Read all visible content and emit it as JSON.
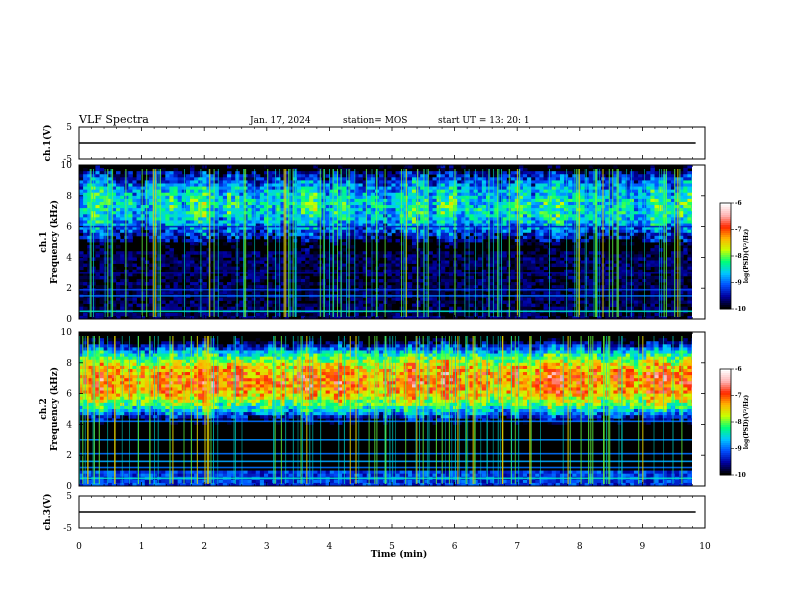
{
  "header": {
    "title": "VLF Spectra",
    "date": "Jan. 17, 2024",
    "station": "station= MOS",
    "start": "start  UT  =   13: 20: 1"
  },
  "colors": {
    "scale": [
      "#000000",
      "#0000a0",
      "#0050ff",
      "#00c8ff",
      "#00ff78",
      "#c8ff00",
      "#ffb400",
      "#ff2800",
      "#ffb4b4",
      "#ffffff"
    ]
  },
  "chart_data": [
    {
      "type": "line",
      "panel": "ch1-waveform",
      "ylabel": "ch.1(V)",
      "ylim": [
        -5,
        5
      ],
      "yticks": [
        "5",
        "-5"
      ],
      "xlim": [
        0,
        10
      ],
      "trace_level": 0
    },
    {
      "type": "heatmap",
      "panel": "ch1-spectrogram",
      "ylabel": "ch.1\nFrequency (kHz)",
      "ylabel_lines": [
        "ch.1",
        "Frequency (kHz)"
      ],
      "ylim": [
        0,
        10
      ],
      "yticks": [
        "0",
        "2",
        "4",
        "6",
        "8",
        "10"
      ],
      "xlim": [
        0,
        10
      ],
      "data_xmax": 9.85,
      "colorbar": {
        "label": "log(PSD)(V²/Hz)",
        "ticks": [
          "-6",
          "-7",
          "-8",
          "-9",
          "-10"
        ],
        "range": [
          -10,
          -6
        ]
      },
      "bands_khz": [
        {
          "f": 0.5,
          "level": -8.5
        },
        {
          "f": 1.5,
          "level": -9.0
        },
        {
          "f": 1.9,
          "level": -9.2
        },
        {
          "f": 3.0,
          "level": -9.6
        },
        {
          "f": 6.0,
          "level": -9.4
        }
      ],
      "activity_band_khz": [
        5.0,
        9.7
      ]
    },
    {
      "type": "heatmap",
      "panel": "ch2-spectrogram",
      "ylabel": "ch.2\nFrequency (kHz)",
      "ylabel_lines": [
        "ch.2",
        "Frequency (kHz)"
      ],
      "ylim": [
        0,
        10
      ],
      "yticks": [
        "0",
        "2",
        "4",
        "6",
        "8",
        "10"
      ],
      "xlim": [
        0,
        10
      ],
      "data_xmax": 9.85,
      "colorbar": {
        "label": "log(PSD)(V²/Hz)",
        "ticks": [
          "-6",
          "-7",
          "-8",
          "-9",
          "-10"
        ],
        "range": [
          -10,
          -6
        ]
      },
      "bands_khz": [
        {
          "f": 0.5,
          "level": -8.5
        },
        {
          "f": 1.2,
          "level": -9.0
        },
        {
          "f": 1.6,
          "level": -8.8
        },
        {
          "f": 2.1,
          "level": -9.0
        },
        {
          "f": 3.0,
          "level": -8.9
        },
        {
          "f": 4.2,
          "level": -9.0
        }
      ],
      "activity_peak_khz": 6.8
    },
    {
      "type": "line",
      "panel": "ch3-waveform",
      "ylabel": "ch.3(V)",
      "ylim": [
        -5,
        5
      ],
      "yticks": [
        "5",
        "-5"
      ],
      "xlim": [
        0,
        10
      ],
      "trace_level": 0
    }
  ],
  "xaxis": {
    "label": "Time  (min)",
    "ticks": [
      "0",
      "1",
      "2",
      "3",
      "4",
      "5",
      "6",
      "7",
      "8",
      "9",
      "10"
    ]
  }
}
